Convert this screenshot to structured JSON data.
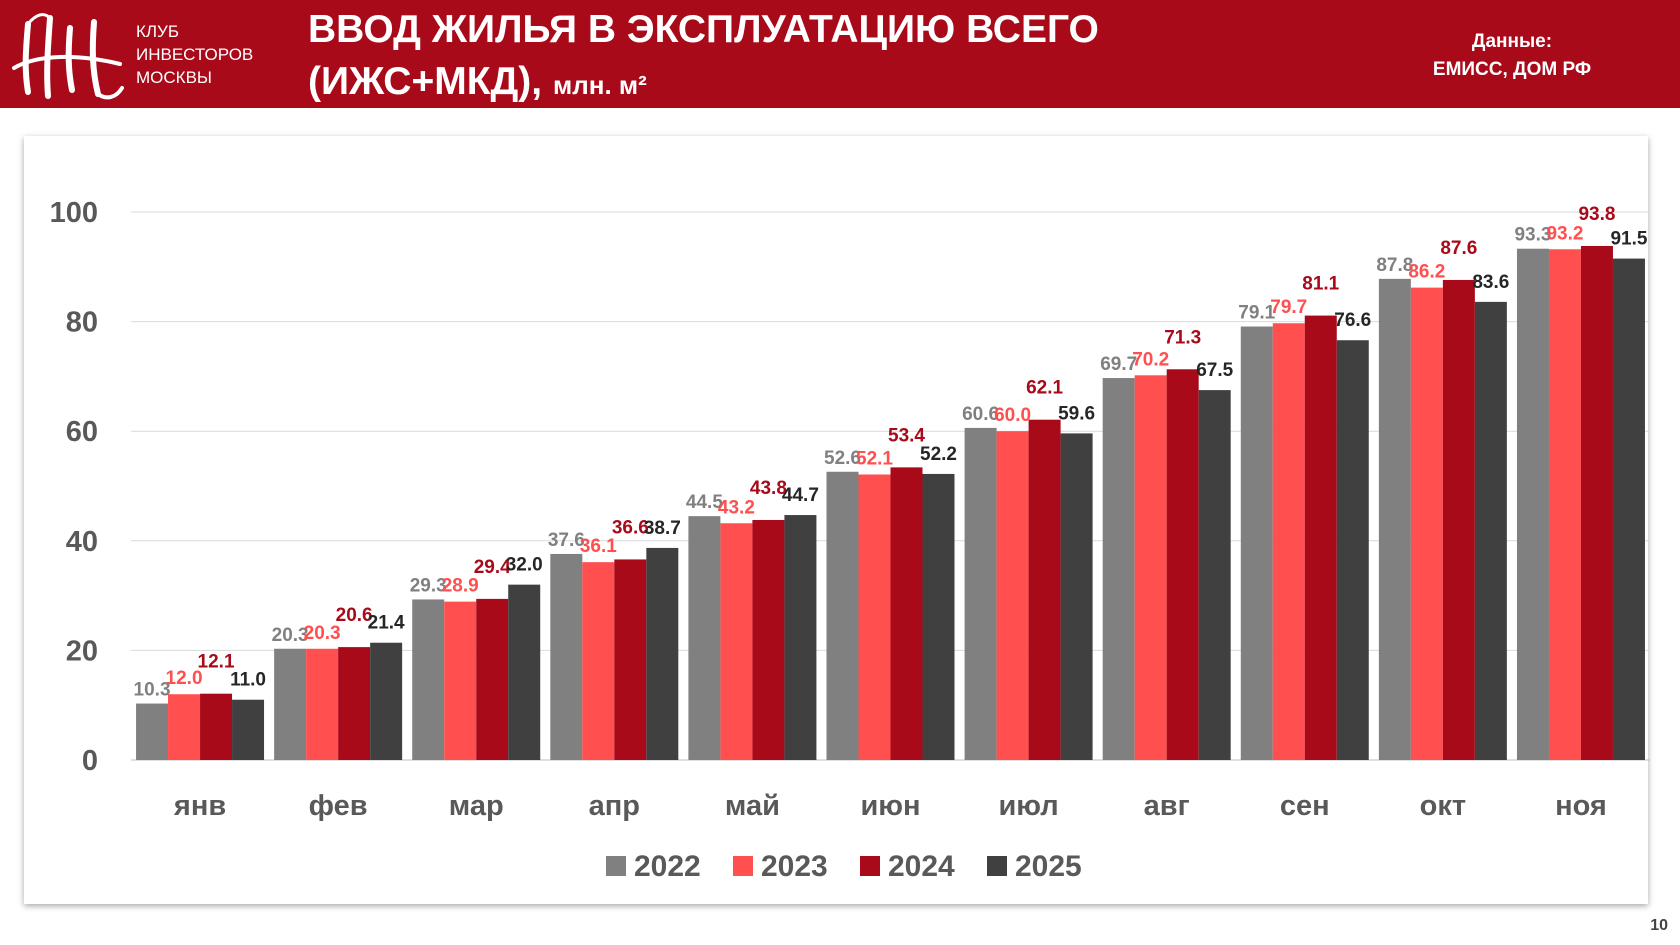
{
  "header": {
    "club_lines": [
      "КЛУБ",
      "ИНВЕСТОРОВ",
      "МОСКВЫ"
    ],
    "title_line1": "ВВОД ЖИЛЬЯ В ЭКСПЛУАТАЦИЮ ВСЕГО",
    "title_line2": "(ИЖС+МКД),",
    "title_unit": "млн. м²",
    "source_label": "Данные:",
    "source_value": "ЕМИСС, ДОМ РФ"
  },
  "page_number": "10",
  "colors": {
    "brand": "#A80A1A",
    "s2022": "#808080",
    "s2023": "#FF4F4F",
    "s2024": "#A80A1A",
    "s2025": "#404040"
  },
  "chart_data": {
    "type": "bar",
    "title": "",
    "xlabel": "",
    "ylabel": "",
    "ylim": [
      0,
      100
    ],
    "yticks": [
      0,
      20,
      40,
      60,
      80,
      100
    ],
    "grid": true,
    "legend_position": "bottom",
    "categories": [
      "янв",
      "фев",
      "мар",
      "апр",
      "май",
      "июн",
      "июл",
      "авг",
      "сен",
      "окт",
      "ноя"
    ],
    "series": [
      {
        "name": "2022",
        "color": "#808080",
        "label_color": "#808080",
        "values": [
          10.3,
          20.3,
          29.3,
          37.6,
          44.5,
          52.6,
          60.6,
          69.7,
          79.1,
          87.8,
          93.3
        ]
      },
      {
        "name": "2023",
        "color": "#FF4F4F",
        "label_color": "#FF4F4F",
        "values": [
          12.0,
          20.3,
          28.9,
          36.1,
          43.2,
          52.1,
          60.0,
          70.2,
          79.7,
          86.2,
          93.2
        ]
      },
      {
        "name": "2024",
        "color": "#A80A1A",
        "label_color": "#A80A1A",
        "values": [
          12.1,
          20.6,
          29.4,
          36.6,
          43.8,
          53.4,
          62.1,
          71.3,
          81.1,
          87.6,
          93.8
        ]
      },
      {
        "name": "2025",
        "color": "#404040",
        "label_color": "#262626",
        "values": [
          11.0,
          21.4,
          32.0,
          38.7,
          44.7,
          52.2,
          59.6,
          67.5,
          76.6,
          83.6,
          91.5
        ]
      }
    ]
  }
}
